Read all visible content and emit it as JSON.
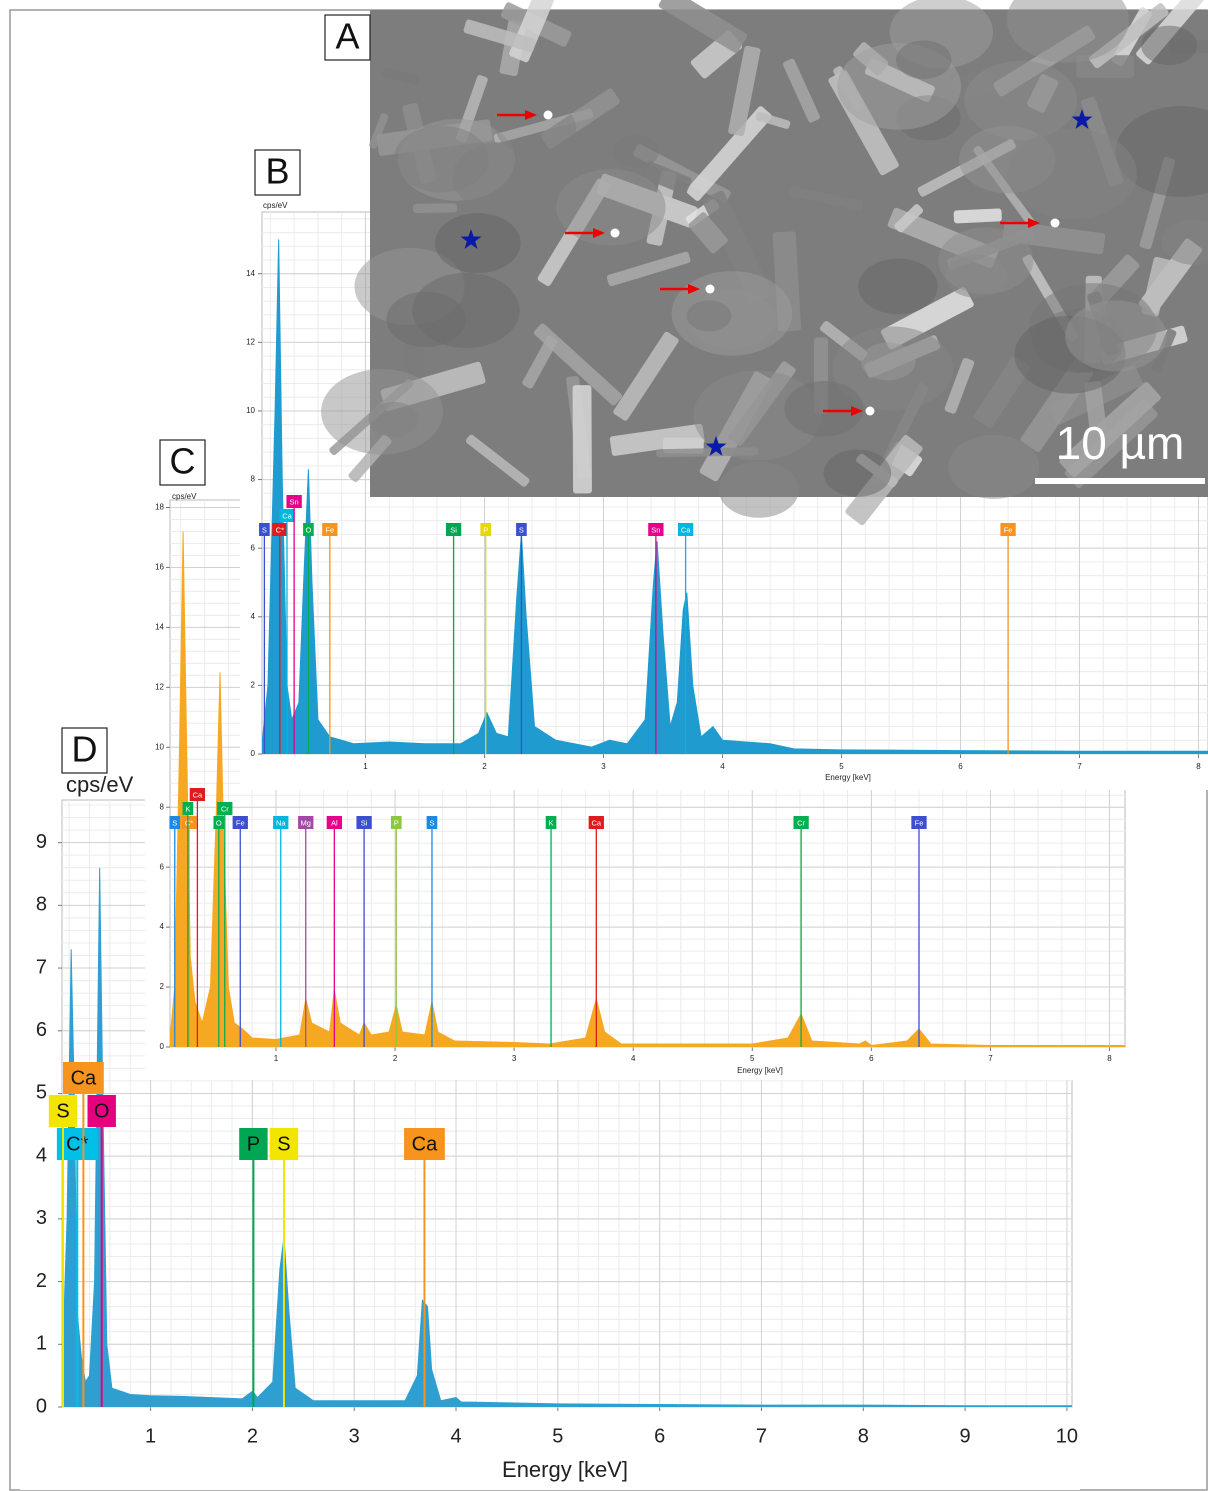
{
  "image": {
    "panel_label": "A",
    "scale_bar_label": "10 µm"
  },
  "chart_data": [
    {
      "type": "area",
      "panel_label": "B",
      "y_label": "cps/eV",
      "x_label": "Energy [keV]",
      "color": "#1f9bcf",
      "grid": true,
      "xlim": [
        0.13,
        8.08
      ],
      "ylim": [
        0,
        15.8
      ],
      "xticks": [
        1,
        2,
        3,
        4,
        5,
        6,
        7,
        8
      ],
      "yticks": [
        0,
        2,
        4,
        6,
        8,
        10,
        12,
        14
      ],
      "x": [
        0.13,
        0.18,
        0.24,
        0.27,
        0.3,
        0.34,
        0.38,
        0.44,
        0.48,
        0.52,
        0.55,
        0.6,
        0.7,
        0.9,
        1.2,
        1.5,
        1.8,
        1.95,
        2.02,
        2.1,
        2.2,
        2.27,
        2.31,
        2.35,
        2.42,
        2.6,
        2.9,
        3.05,
        3.2,
        3.35,
        3.42,
        3.45,
        3.5,
        3.56,
        3.62,
        3.67,
        3.7,
        3.75,
        3.82,
        3.92,
        4.0,
        4.4,
        4.6,
        5,
        6,
        7,
        8.08
      ],
      "values": [
        0.3,
        2,
        10,
        15,
        8,
        2,
        1,
        1.5,
        5,
        8.3,
        5,
        1,
        0.5,
        0.3,
        0.35,
        0.3,
        0.3,
        0.6,
        1.2,
        0.6,
        0.5,
        4.5,
        6.4,
        4,
        0.8,
        0.4,
        0.2,
        0.4,
        0.3,
        1,
        5,
        6.2,
        3.5,
        0.8,
        1.5,
        4.2,
        4.7,
        2,
        0.5,
        0.8,
        0.4,
        0.3,
        0.15,
        0.12,
        0.1,
        0.08,
        0.08
      ],
      "markers": [
        {
          "label": "C*",
          "x": 0.28,
          "color": "#e31a1c"
        },
        {
          "label": "S",
          "x": 0.15,
          "color": "#3b4fcf"
        },
        {
          "label": "Ca",
          "x": 0.34,
          "color": "#00b7e0"
        },
        {
          "label": "Sn",
          "x": 0.4,
          "color": "#e6008a"
        },
        {
          "label": "O",
          "x": 0.52,
          "color": "#00b050"
        },
        {
          "label": "Fe",
          "x": 0.7,
          "color": "#f7941d"
        },
        {
          "label": "Si",
          "x": 1.74,
          "color": "#00a651"
        },
        {
          "label": "P",
          "x": 2.01,
          "color": "#e8d800"
        },
        {
          "label": "S",
          "x": 2.31,
          "color": "#3b4fcf"
        },
        {
          "label": "Sn",
          "x": 3.44,
          "color": "#e6008a"
        },
        {
          "label": "Ca",
          "x": 3.69,
          "color": "#00b7e0"
        },
        {
          "label": "Fe",
          "x": 6.4,
          "color": "#f7941d"
        }
      ]
    },
    {
      "type": "area",
      "panel_label": "C",
      "y_label": "cps/eV",
      "x_label": "Energy [keV]",
      "color": "#f7a823",
      "grid": true,
      "xlim": [
        0.11,
        8.13
      ],
      "ylim": [
        0,
        18.25
      ],
      "xticks": [
        1,
        2,
        3,
        4,
        5,
        6,
        7,
        8
      ],
      "yticks": [
        0,
        2,
        4,
        6,
        8,
        10,
        12,
        14,
        16,
        18
      ],
      "x": [
        0.11,
        0.15,
        0.19,
        0.22,
        0.25,
        0.28,
        0.32,
        0.38,
        0.45,
        0.5,
        0.53,
        0.56,
        0.6,
        0.65,
        0.72,
        0.8,
        1.0,
        1.2,
        1.25,
        1.3,
        1.45,
        1.49,
        1.54,
        1.7,
        1.74,
        1.8,
        1.95,
        2.01,
        2.06,
        2.25,
        2.31,
        2.36,
        2.5,
        3.0,
        3.3,
        3.6,
        3.69,
        3.76,
        3.9,
        4.0,
        5.0,
        5.3,
        5.41,
        5.5,
        5.9,
        5.95,
        6.0,
        6.3,
        6.4,
        6.5,
        7,
        8,
        8.13
      ],
      "values": [
        0.3,
        2,
        10,
        17.2,
        10,
        3,
        1.5,
        0.8,
        2,
        8,
        12.5,
        7,
        2,
        0.8,
        0.6,
        0.3,
        0.25,
        0.4,
        1.6,
        0.8,
        0.5,
        1.9,
        0.8,
        0.4,
        0.8,
        0.4,
        0.5,
        1.4,
        0.5,
        0.4,
        1.5,
        0.5,
        0.2,
        0.15,
        0.1,
        0.3,
        1.6,
        0.5,
        0.1,
        0.1,
        0.1,
        0.3,
        1.1,
        0.2,
        0.1,
        0.2,
        0.05,
        0.2,
        0.6,
        0.1,
        0.05,
        0.05,
        0.05
      ],
      "markers": [
        {
          "label": "C*",
          "x": 0.27,
          "color": "#f7941d"
        },
        {
          "label": "S",
          "x": 0.15,
          "color": "#1e88e5"
        },
        {
          "label": "K",
          "x": 0.26,
          "color": "#00b050"
        },
        {
          "label": "Ca",
          "x": 0.34,
          "color": "#e31a1c"
        },
        {
          "label": "O",
          "x": 0.52,
          "color": "#00b050"
        },
        {
          "label": "Cr",
          "x": 0.57,
          "color": "#00b050"
        },
        {
          "label": "Fe",
          "x": 0.7,
          "color": "#3b4fcf"
        },
        {
          "label": "Na",
          "x": 1.04,
          "color": "#00b7e0"
        },
        {
          "label": "Mg",
          "x": 1.25,
          "color": "#a349a4"
        },
        {
          "label": "Al",
          "x": 1.49,
          "color": "#e6008a"
        },
        {
          "label": "Si",
          "x": 1.74,
          "color": "#3b4fcf"
        },
        {
          "label": "P",
          "x": 2.01,
          "color": "#8dc63f"
        },
        {
          "label": "S",
          "x": 2.31,
          "color": "#1e88e5"
        },
        {
          "label": "K",
          "x": 3.31,
          "color": "#00b050"
        },
        {
          "label": "Ca",
          "x": 3.69,
          "color": "#e31a1c"
        },
        {
          "label": "Cr",
          "x": 5.41,
          "color": "#00b050"
        },
        {
          "label": "Fe",
          "x": 6.4,
          "color": "#3b4fcf"
        }
      ]
    },
    {
      "type": "area",
      "panel_label": "D",
      "y_label": "cps/eV",
      "x_label": "Energy [keV]",
      "color": "#2e9fd0",
      "grid": true,
      "xlim": [
        0.13,
        10.05
      ],
      "ylim": [
        0,
        9.68
      ],
      "xticks": [
        1,
        2,
        3,
        4,
        5,
        6,
        7,
        8,
        9,
        10
      ],
      "yticks": [
        0,
        1,
        2,
        3,
        4,
        5,
        6,
        7,
        8,
        9
      ],
      "x": [
        0.13,
        0.18,
        0.22,
        0.25,
        0.28,
        0.32,
        0.36,
        0.4,
        0.45,
        0.5,
        0.53,
        0.57,
        0.62,
        0.8,
        1.0,
        1.3,
        1.6,
        1.9,
        2.0,
        2.05,
        2.2,
        2.27,
        2.31,
        2.36,
        2.42,
        2.6,
        3.0,
        3.5,
        3.62,
        3.67,
        3.72,
        3.76,
        3.85,
        4.0,
        4.05,
        5,
        6,
        7,
        8,
        9,
        10,
        10.05
      ],
      "values": [
        0.5,
        3,
        7.3,
        5,
        1.5,
        0.8,
        0.4,
        0.5,
        2,
        8.6,
        5,
        1,
        0.3,
        0.2,
        0.18,
        0.17,
        0.15,
        0.13,
        0.25,
        0.15,
        0.4,
        2.2,
        2.7,
        1.5,
        0.3,
        0.1,
        0.1,
        0.1,
        0.5,
        1.7,
        1.6,
        0.6,
        0.1,
        0.15,
        0.08,
        0.05,
        0.04,
        0.03,
        0.03,
        0.02,
        0.02,
        0.02
      ],
      "markers": [
        {
          "label": "C*",
          "x": 0.28,
          "color": "#00c0e8"
        },
        {
          "label": "S",
          "x": 0.14,
          "color": "#f2e500"
        },
        {
          "label": "O",
          "x": 0.52,
          "color": "#e6007e"
        },
        {
          "label": "Ca",
          "x": 0.34,
          "color": "#f7941d"
        },
        {
          "label": "P",
          "x": 2.01,
          "color": "#00a651"
        },
        {
          "label": "S",
          "x": 2.31,
          "color": "#f2e500"
        },
        {
          "label": "Ca",
          "x": 3.69,
          "color": "#f7941d"
        }
      ]
    }
  ]
}
